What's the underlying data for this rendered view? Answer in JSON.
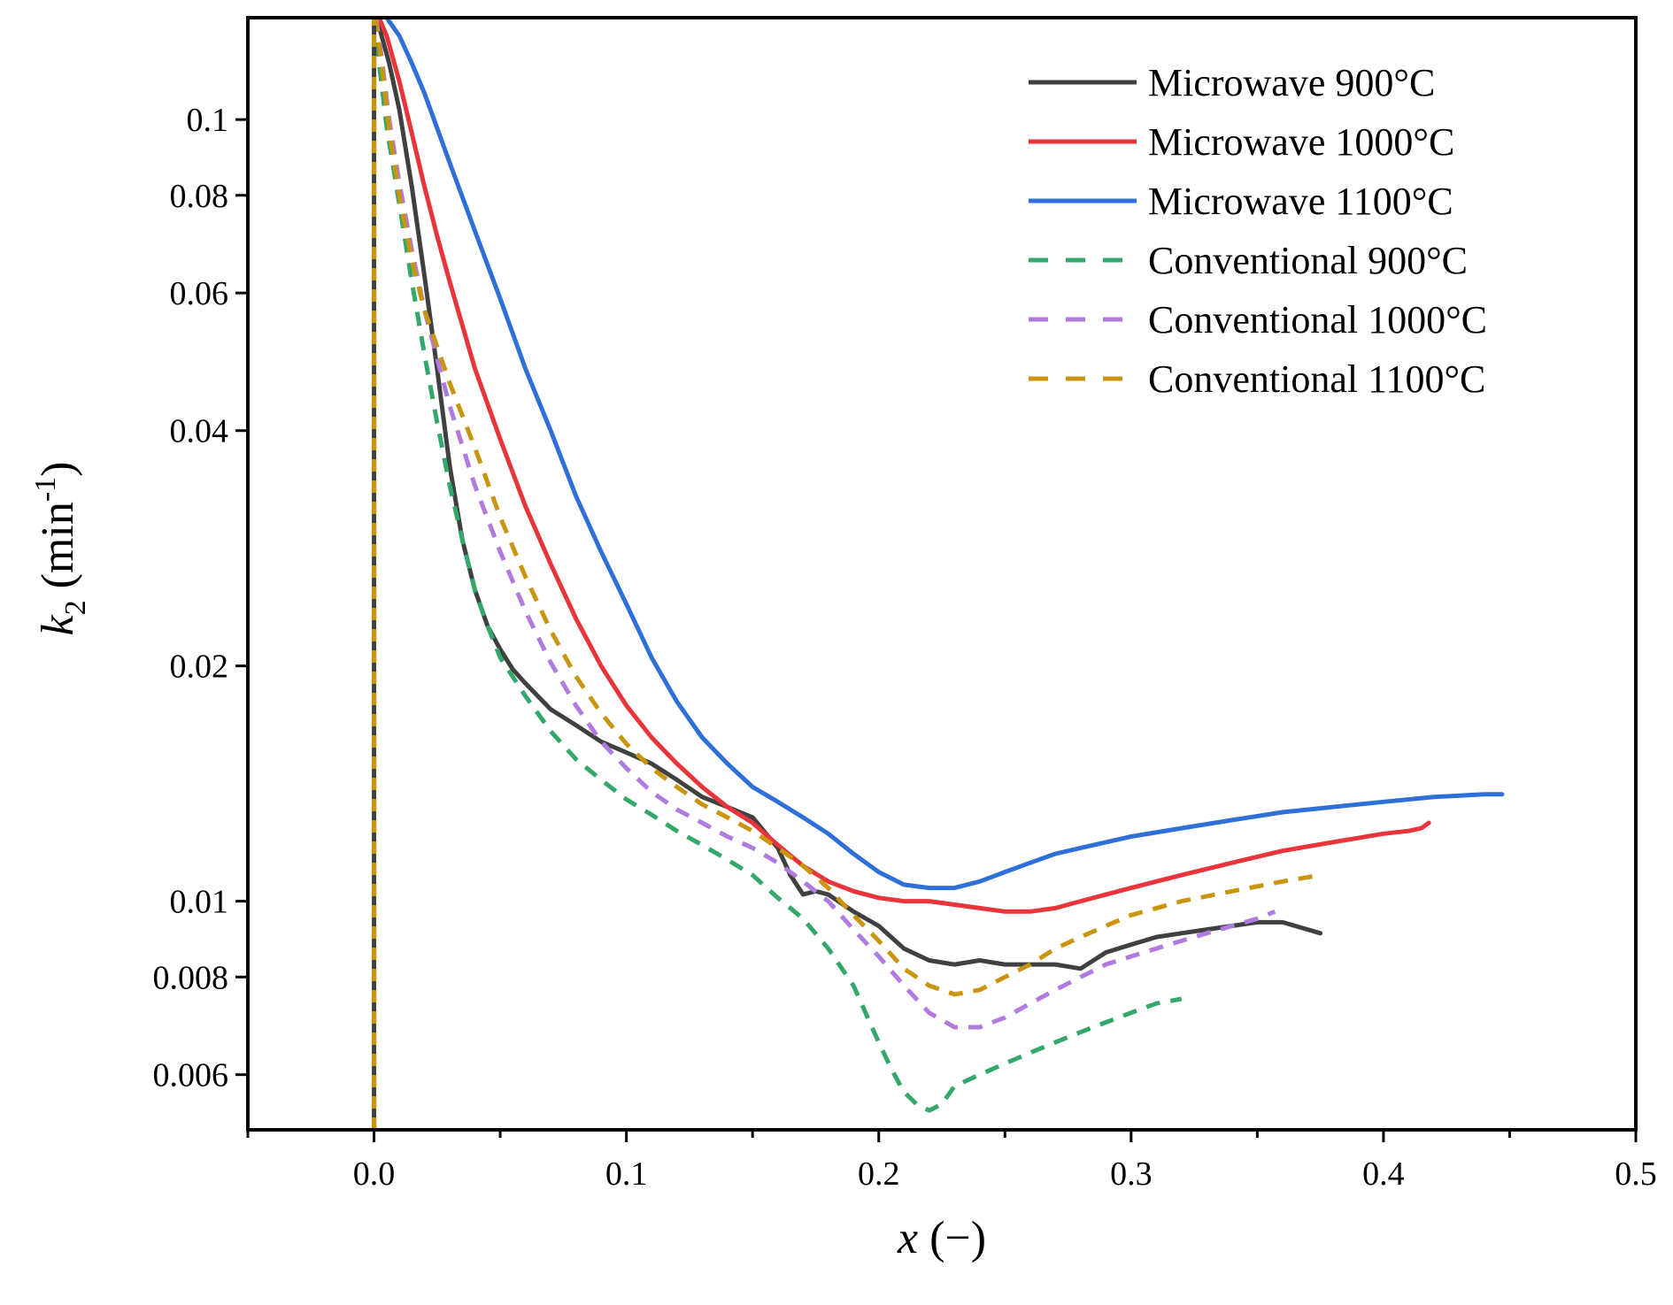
{
  "chart_data": {
    "type": "line",
    "title": "",
    "xlabel": "x (−)",
    "xlabel_parts": {
      "var": "x",
      "unit": " (−)"
    },
    "ylabel": "k2 (min-1)",
    "ylabel_parts": {
      "var": "k",
      "sub": "2",
      "pre": " (min",
      "sup": "-1",
      "post": ")"
    },
    "xlim": [
      -0.05,
      0.5
    ],
    "ylim": [
      0.0051,
      0.135
    ],
    "yscale": "log",
    "x_ticks": [
      0.0,
      0.1,
      0.2,
      0.3,
      0.4,
      0.5
    ],
    "x_tick_labels": [
      "0.0",
      "0.1",
      "0.2",
      "0.3",
      "0.4",
      "0.5"
    ],
    "x_minor_ticks": [
      -0.05,
      0.05,
      0.15,
      0.25,
      0.35,
      0.45
    ],
    "y_ticks": [
      0.1,
      0.08,
      0.06,
      0.04,
      0.02,
      0.01,
      0.008,
      0.006
    ],
    "y_tick_labels": [
      "0.1",
      "0.08",
      "0.06",
      "0.04",
      "0.02",
      "0.01",
      "0.008",
      "0.006"
    ],
    "grid": false,
    "legend_position": "top-right",
    "series": [
      {
        "name": "Microwave 900°C",
        "color": "#404040",
        "dash": "solid",
        "x": [
          0.001,
          0.003,
          0.006,
          0.01,
          0.015,
          0.02,
          0.025,
          0.03,
          0.035,
          0.04,
          0.045,
          0.05,
          0.055,
          0.06,
          0.07,
          0.08,
          0.09,
          0.1,
          0.11,
          0.12,
          0.13,
          0.14,
          0.15,
          0.16,
          0.165,
          0.17,
          0.175,
          0.18,
          0.19,
          0.2,
          0.21,
          0.22,
          0.23,
          0.24,
          0.25,
          0.26,
          0.27,
          0.28,
          0.29,
          0.3,
          0.31,
          0.32,
          0.33,
          0.34,
          0.35,
          0.36,
          0.365,
          0.37,
          0.375
        ],
        "y": [
          0.135,
          0.128,
          0.118,
          0.103,
          0.082,
          0.063,
          0.048,
          0.036,
          0.029,
          0.025,
          0.0225,
          0.021,
          0.0198,
          0.019,
          0.0176,
          0.0168,
          0.016,
          0.0155,
          0.015,
          0.0143,
          0.0136,
          0.0132,
          0.0128,
          0.0117,
          0.0108,
          0.0102,
          0.0103,
          0.0102,
          0.0097,
          0.0093,
          0.0087,
          0.0084,
          0.0083,
          0.0084,
          0.0083,
          0.0083,
          0.0083,
          0.0082,
          0.0086,
          0.0088,
          0.009,
          0.0091,
          0.0092,
          0.0093,
          0.0094,
          0.0094,
          0.0093,
          0.0092,
          0.0091
        ]
      },
      {
        "name": "Microwave 1000°C",
        "color": "#e8343a",
        "dash": "solid",
        "x": [
          0.002,
          0.005,
          0.01,
          0.015,
          0.02,
          0.025,
          0.03,
          0.04,
          0.05,
          0.06,
          0.07,
          0.08,
          0.09,
          0.1,
          0.11,
          0.12,
          0.13,
          0.14,
          0.15,
          0.16,
          0.17,
          0.18,
          0.19,
          0.2,
          0.21,
          0.22,
          0.23,
          0.24,
          0.25,
          0.26,
          0.27,
          0.28,
          0.3,
          0.32,
          0.34,
          0.36,
          0.38,
          0.4,
          0.41,
          0.415,
          0.418
        ],
        "y": [
          0.135,
          0.128,
          0.112,
          0.096,
          0.082,
          0.071,
          0.062,
          0.048,
          0.039,
          0.032,
          0.027,
          0.023,
          0.02,
          0.0178,
          0.0162,
          0.015,
          0.014,
          0.0132,
          0.0126,
          0.0118,
          0.0111,
          0.0106,
          0.0103,
          0.0101,
          0.01,
          0.01,
          0.0099,
          0.0098,
          0.0097,
          0.0097,
          0.0098,
          0.01,
          0.0104,
          0.0108,
          0.0112,
          0.0116,
          0.0119,
          0.0122,
          0.0123,
          0.0124,
          0.0126
        ]
      },
      {
        "name": "Microwave 1100°C",
        "color": "#2f6fd8",
        "dash": "solid",
        "x": [
          0.005,
          0.01,
          0.015,
          0.02,
          0.03,
          0.04,
          0.05,
          0.06,
          0.07,
          0.08,
          0.09,
          0.1,
          0.11,
          0.12,
          0.13,
          0.14,
          0.15,
          0.16,
          0.17,
          0.18,
          0.19,
          0.2,
          0.21,
          0.22,
          0.23,
          0.24,
          0.25,
          0.26,
          0.27,
          0.28,
          0.3,
          0.32,
          0.34,
          0.36,
          0.38,
          0.4,
          0.42,
          0.44,
          0.447
        ],
        "y": [
          0.135,
          0.128,
          0.118,
          0.108,
          0.088,
          0.072,
          0.059,
          0.048,
          0.04,
          0.033,
          0.028,
          0.024,
          0.0205,
          0.018,
          0.0162,
          0.015,
          0.014,
          0.0134,
          0.0128,
          0.0122,
          0.0115,
          0.0109,
          0.0105,
          0.0104,
          0.0104,
          0.0106,
          0.0109,
          0.0112,
          0.0115,
          0.0117,
          0.0121,
          0.0124,
          0.0127,
          0.013,
          0.0132,
          0.0134,
          0.0136,
          0.0137,
          0.0137
        ]
      },
      {
        "name": "Conventional 900°C",
        "color": "#33a86a",
        "dash": "dashed",
        "x": [
          0.0005,
          0.002,
          0.005,
          0.01,
          0.015,
          0.02,
          0.025,
          0.03,
          0.035,
          0.04,
          0.045,
          0.05,
          0.06,
          0.07,
          0.08,
          0.09,
          0.1,
          0.11,
          0.12,
          0.13,
          0.14,
          0.15,
          0.16,
          0.17,
          0.18,
          0.19,
          0.2,
          0.205,
          0.21,
          0.215,
          0.22,
          0.225,
          0.23,
          0.24,
          0.25,
          0.26,
          0.27,
          0.28,
          0.29,
          0.3,
          0.31,
          0.32
        ],
        "y": [
          0.135,
          0.118,
          0.098,
          0.078,
          0.062,
          0.05,
          0.041,
          0.034,
          0.029,
          0.025,
          0.0225,
          0.0205,
          0.0183,
          0.0165,
          0.0152,
          0.0143,
          0.0135,
          0.0129,
          0.0123,
          0.0118,
          0.0113,
          0.0108,
          0.0101,
          0.0095,
          0.0087,
          0.0078,
          0.0066,
          0.0061,
          0.0057,
          0.0055,
          0.0054,
          0.0055,
          0.0058,
          0.006,
          0.0062,
          0.0064,
          0.0066,
          0.0068,
          0.007,
          0.0072,
          0.0074,
          0.0075
        ]
      },
      {
        "name": "Conventional 1000°C",
        "color": "#b07adf",
        "dash": "dashed",
        "x": [
          0.0008,
          0.003,
          0.006,
          0.01,
          0.015,
          0.02,
          0.03,
          0.04,
          0.05,
          0.06,
          0.07,
          0.08,
          0.09,
          0.1,
          0.11,
          0.12,
          0.13,
          0.14,
          0.15,
          0.16,
          0.17,
          0.18,
          0.19,
          0.2,
          0.21,
          0.22,
          0.23,
          0.24,
          0.25,
          0.26,
          0.27,
          0.28,
          0.29,
          0.3,
          0.31,
          0.32,
          0.33,
          0.34,
          0.35,
          0.357
        ],
        "y": [
          0.135,
          0.12,
          0.1,
          0.083,
          0.068,
          0.057,
          0.043,
          0.034,
          0.028,
          0.0235,
          0.0202,
          0.0178,
          0.016,
          0.0148,
          0.0138,
          0.0131,
          0.0126,
          0.0121,
          0.0117,
          0.0112,
          0.0106,
          0.01,
          0.0092,
          0.0085,
          0.0078,
          0.0072,
          0.0069,
          0.0069,
          0.0071,
          0.0074,
          0.0077,
          0.008,
          0.0083,
          0.0085,
          0.0087,
          0.0089,
          0.0091,
          0.0093,
          0.0095,
          0.0097
        ]
      },
      {
        "name": "Conventional 1100°C",
        "color": "#c9950e",
        "dash": "dashed",
        "x": [
          0.0005,
          0.003,
          0.006,
          0.01,
          0.015,
          0.02,
          0.03,
          0.04,
          0.05,
          0.06,
          0.07,
          0.08,
          0.09,
          0.1,
          0.11,
          0.12,
          0.13,
          0.14,
          0.15,
          0.16,
          0.17,
          0.18,
          0.19,
          0.2,
          0.21,
          0.22,
          0.23,
          0.24,
          0.25,
          0.26,
          0.27,
          0.28,
          0.29,
          0.3,
          0.32,
          0.34,
          0.36,
          0.375
        ],
        "y": [
          0.135,
          0.118,
          0.097,
          0.08,
          0.066,
          0.057,
          0.046,
          0.038,
          0.031,
          0.026,
          0.0222,
          0.0194,
          0.0174,
          0.0159,
          0.0148,
          0.014,
          0.0133,
          0.0128,
          0.0123,
          0.0117,
          0.0111,
          0.0104,
          0.0096,
          0.0089,
          0.0082,
          0.0078,
          0.0076,
          0.0077,
          0.008,
          0.0083,
          0.0087,
          0.009,
          0.0093,
          0.0096,
          0.01,
          0.0103,
          0.0106,
          0.0108
        ]
      }
    ],
    "vertical_spike_x": 0.0
  }
}
